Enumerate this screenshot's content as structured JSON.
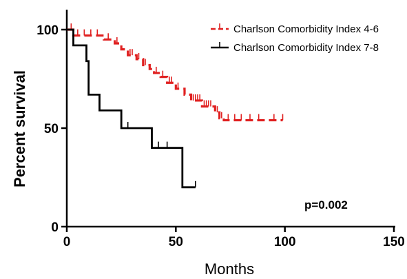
{
  "chart_data": {
    "type": "line",
    "subtype": "kaplan-meier",
    "title": "",
    "xlabel": "Months",
    "ylabel": "Percent survival",
    "xlim": [
      0,
      150
    ],
    "ylim": [
      0,
      100
    ],
    "xticks": [
      0,
      50,
      100,
      150
    ],
    "yticks": [
      0,
      50,
      100
    ],
    "grid": false,
    "legend_position": "top-right",
    "annotation": "p=0.002",
    "series": [
      {
        "name": "Charlson Comorbidity Index 4-6",
        "color": "#e02020",
        "style": "dashed",
        "steps": [
          [
            0,
            100
          ],
          [
            3,
            97
          ],
          [
            17,
            95
          ],
          [
            22,
            93
          ],
          [
            25,
            90
          ],
          [
            28,
            87
          ],
          [
            32,
            85
          ],
          [
            35,
            82
          ],
          [
            38,
            80
          ],
          [
            40,
            78
          ],
          [
            43,
            76
          ],
          [
            46,
            73
          ],
          [
            50,
            70
          ],
          [
            54,
            67
          ],
          [
            57,
            64
          ],
          [
            62,
            61
          ],
          [
            68,
            58
          ],
          [
            70,
            55
          ],
          [
            72,
            54
          ],
          [
            99,
            54
          ]
        ],
        "censored": [
          [
            2,
            100
          ],
          [
            5,
            97
          ],
          [
            8,
            97
          ],
          [
            11,
            97
          ],
          [
            14,
            97
          ],
          [
            19,
            95
          ],
          [
            23,
            93
          ],
          [
            29,
            87
          ],
          [
            30,
            87
          ],
          [
            33,
            85
          ],
          [
            36,
            82
          ],
          [
            41,
            78
          ],
          [
            44,
            76
          ],
          [
            47,
            73
          ],
          [
            48,
            73
          ],
          [
            51,
            70
          ],
          [
            58,
            64
          ],
          [
            59,
            64
          ],
          [
            60,
            64
          ],
          [
            61,
            64
          ],
          [
            63,
            61
          ],
          [
            64,
            61
          ],
          [
            65,
            61
          ],
          [
            66,
            61
          ],
          [
            69,
            58
          ],
          [
            71,
            55
          ],
          [
            74,
            54
          ],
          [
            77,
            54
          ],
          [
            80,
            54
          ],
          [
            84,
            54
          ],
          [
            88,
            54
          ],
          [
            95,
            54
          ],
          [
            99,
            54
          ]
        ]
      },
      {
        "name": "Charlson Comorbidity Index 7-8",
        "color": "#000000",
        "style": "solid",
        "steps": [
          [
            0,
            100
          ],
          [
            3,
            92
          ],
          [
            9,
            84
          ],
          [
            10,
            67
          ],
          [
            15,
            59
          ],
          [
            25,
            50
          ],
          [
            39,
            40
          ],
          [
            53,
            20
          ],
          [
            59,
            20
          ]
        ],
        "censored": [
          [
            28,
            50
          ],
          [
            42,
            40
          ],
          [
            46,
            40
          ],
          [
            59,
            20
          ]
        ]
      }
    ]
  }
}
